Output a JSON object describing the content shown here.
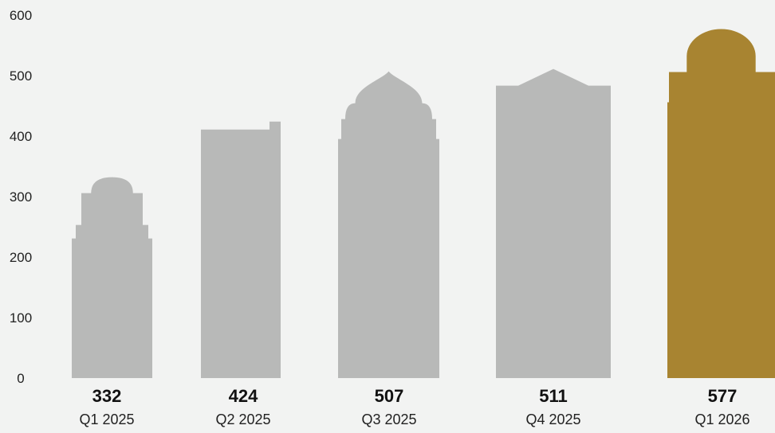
{
  "chart_data": {
    "type": "bar",
    "categories": [
      "Q1 2025",
      "Q2 2025",
      "Q3 2025",
      "Q4 2025",
      "Q1 2026"
    ],
    "values": [
      332,
      424,
      507,
      511,
      577
    ],
    "value_labels": [
      "332",
      "424",
      "507",
      "511",
      "577"
    ],
    "yticks": [
      "0",
      "100",
      "200",
      "300",
      "400",
      "500",
      "600"
    ],
    "ylim": [
      0,
      600
    ],
    "grid": false,
    "title": "",
    "xlabel": "",
    "ylabel": "",
    "bar_shapes": [
      "small-dome",
      "flat-step",
      "onion-dome",
      "peaked-roof",
      "large-dome"
    ],
    "colors": {
      "background": "#f2f3f2",
      "bar": "#b8b9b8",
      "highlight": "#a88431",
      "text": "#222222"
    },
    "highlight_index": 4
  }
}
